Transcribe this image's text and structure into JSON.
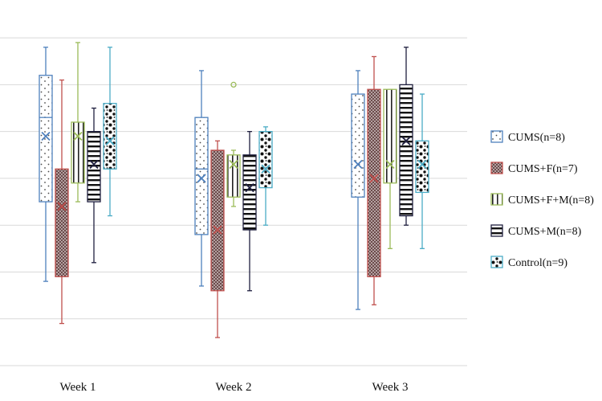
{
  "chart_data": {
    "type": "box",
    "categories": [
      "Week 1",
      "Week 2",
      "Week 3"
    ],
    "ylim": [
      0,
      7.5
    ],
    "grid": true,
    "legend_position": "right",
    "series": [
      {
        "name": "CUMS(n=8)",
        "color": "#4f81bd",
        "pattern": "dots-sparse",
        "boxes": [
          {
            "min": 1.8,
            "q1": 3.5,
            "median": 5.3,
            "q3": 6.2,
            "max": 6.8,
            "mean": 4.9,
            "outliers": []
          },
          {
            "min": 1.7,
            "q1": 2.8,
            "median": 4.2,
            "q3": 5.3,
            "max": 6.3,
            "mean": 4.0,
            "outliers": []
          },
          {
            "min": 1.2,
            "q1": 3.6,
            "median": null,
            "q3": 5.8,
            "max": 6.3,
            "mean": 4.3,
            "outliers": []
          }
        ]
      },
      {
        "name": "CUMS+F(n=7)",
        "color": "#c0504d",
        "pattern": "dense-dots-dark",
        "boxes": [
          {
            "min": 0.9,
            "q1": 1.9,
            "median": null,
            "q3": 4.2,
            "max": 6.1,
            "mean": 3.4,
            "outliers": []
          },
          {
            "min": 0.6,
            "q1": 1.6,
            "median": null,
            "q3": 4.6,
            "max": 4.8,
            "mean": 2.9,
            "outliers": []
          },
          {
            "min": 1.3,
            "q1": 1.9,
            "median": null,
            "q3": 5.9,
            "max": 6.6,
            "mean": 4.0,
            "outliers": []
          }
        ]
      },
      {
        "name": "CUMS+F+M(n=8)",
        "color": "#9bbb59",
        "pattern": "vertical-lines",
        "boxes": [
          {
            "min": 3.5,
            "q1": 3.9,
            "median": null,
            "q3": 5.2,
            "max": 6.9,
            "mean": 4.9,
            "outliers": []
          },
          {
            "min": 3.4,
            "q1": 3.6,
            "median": null,
            "q3": 4.5,
            "max": 4.6,
            "mean": 4.3,
            "outliers": [
              6.0
            ]
          },
          {
            "min": 2.5,
            "q1": 3.9,
            "median": null,
            "q3": 5.9,
            "max": 5.9,
            "mean": 4.3,
            "outliers": []
          }
        ]
      },
      {
        "name": "CUMS+M(n=8)",
        "color": "#1f1f3f",
        "pattern": "horizontal-lines",
        "boxes": [
          {
            "min": 2.2,
            "q1": 3.5,
            "median": null,
            "q3": 5.0,
            "max": 5.5,
            "mean": 4.3,
            "outliers": []
          },
          {
            "min": 1.6,
            "q1": 2.9,
            "median": null,
            "q3": 4.5,
            "max": 5.0,
            "mean": 3.8,
            "outliers": []
          },
          {
            "min": 3.0,
            "q1": 3.2,
            "median": null,
            "q3": 6.0,
            "max": 6.8,
            "mean": 4.8,
            "outliers": []
          }
        ]
      },
      {
        "name": "Control(n=9)",
        "color": "#4bacc6",
        "pattern": "blob-dots",
        "boxes": [
          {
            "min": 3.2,
            "q1": 4.2,
            "median": null,
            "q3": 5.6,
            "max": 6.8,
            "mean": 4.8,
            "outliers": []
          },
          {
            "min": 3.0,
            "q1": 3.8,
            "median": null,
            "q3": 5.0,
            "max": 5.1,
            "mean": 4.2,
            "outliers": []
          },
          {
            "min": 2.5,
            "q1": 3.7,
            "median": null,
            "q3": 4.8,
            "max": 5.8,
            "mean": 4.3,
            "outliers": []
          }
        ]
      }
    ]
  }
}
